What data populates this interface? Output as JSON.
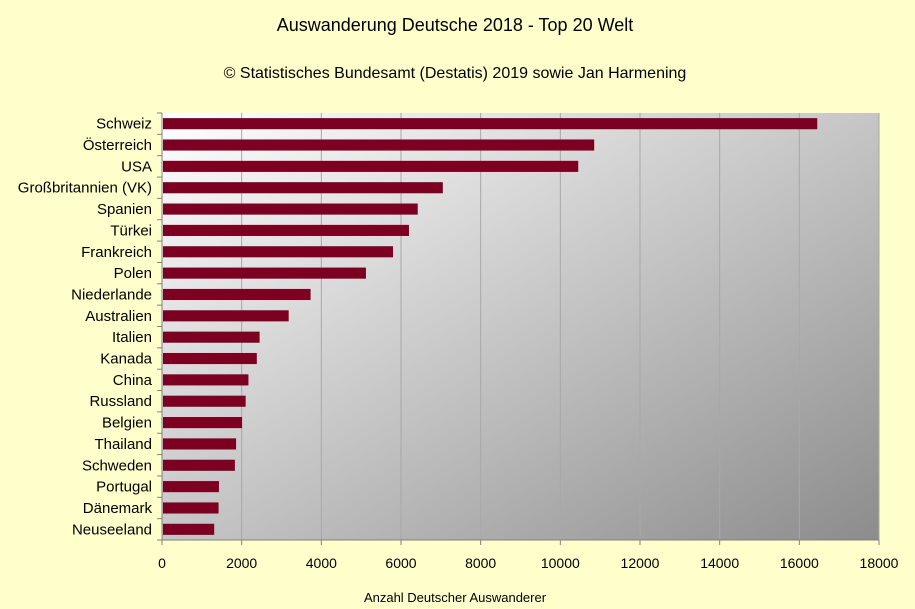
{
  "chart_data": {
    "type": "bar",
    "orientation": "horizontal",
    "title": "Auswanderung Deutsche 2018 - Top 20 Welt",
    "subtitle": "© Statistisches Bundesamt (Destatis) 2019 sowie Jan Harmening",
    "xlabel": "Anzahl Deutscher Auswanderer",
    "ylabel": "",
    "xlim": [
      0,
      18000
    ],
    "xticks": [
      0,
      2000,
      4000,
      6000,
      8000,
      10000,
      12000,
      14000,
      16000,
      18000
    ],
    "grid": true,
    "categories": [
      "Schweiz",
      "Österreich",
      "USA",
      "Großbritannien (VK)",
      "Spanien",
      "Türkei",
      "Frankreich",
      "Polen",
      "Niederlande",
      "Australien",
      "Italien",
      "Kanada",
      "China",
      "Russland",
      "Belgien",
      "Thailand",
      "Schweden",
      "Portugal",
      "Dänemark",
      "Neuseeland"
    ],
    "values": [
      16450,
      10850,
      10450,
      7050,
      6420,
      6200,
      5800,
      5120,
      3730,
      3180,
      2450,
      2380,
      2170,
      2100,
      2010,
      1860,
      1830,
      1430,
      1420,
      1310
    ],
    "colors": {
      "bar": "#7b0021",
      "page_background": "#ffffcc",
      "plot_light": "#ffffff",
      "plot_dark": "#8c8c8c",
      "grid": "#a8a8a8",
      "axis": "#808080"
    }
  }
}
